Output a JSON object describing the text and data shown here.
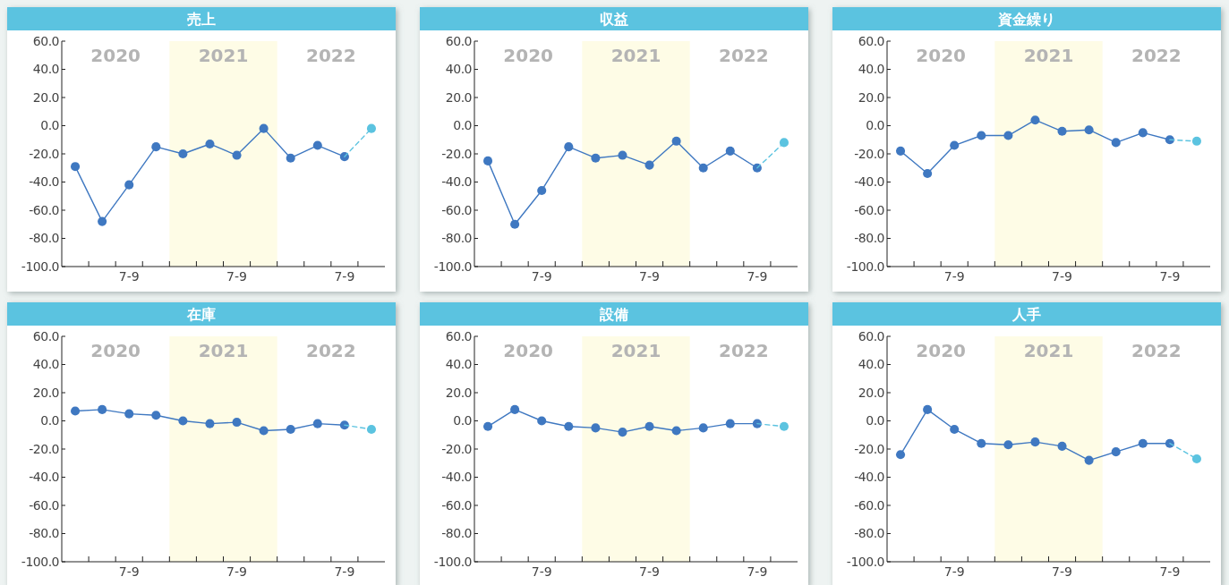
{
  "chart_data": [
    {
      "type": "line",
      "title": "売上",
      "ylim": [
        -100,
        60
      ],
      "marker": "circle",
      "categories": [
        null,
        null,
        "7-9",
        null,
        null,
        null,
        "7-9",
        null,
        null,
        null,
        "7-9",
        null
      ],
      "yticks": [
        {
          "value": 60,
          "label": "60.0"
        },
        {
          "value": 40,
          "label": "40.0"
        },
        {
          "value": 20,
          "label": "20.0"
        },
        {
          "value": 0,
          "label": "0.0"
        },
        {
          "value": -20,
          "label": "-20.0"
        },
        {
          "value": -40,
          "label": "-40.0"
        },
        {
          "value": -60,
          "label": "-60.0"
        },
        {
          "value": -80,
          "label": "-80.0"
        },
        {
          "value": -100,
          "label": "-100.0"
        }
      ],
      "annotations": [
        "2020",
        "2021",
        "2022"
      ],
      "series": [
        {
          "color": "#3f78c1",
          "values": [
            -29,
            -68,
            -42,
            -15,
            -20,
            -13,
            -21,
            -2,
            -23,
            -14,
            -22,
            null
          ]
        },
        {
          "color": "#5bc3e0",
          "line_style": "dashed",
          "values": [
            null,
            null,
            null,
            null,
            null,
            null,
            null,
            null,
            null,
            null,
            -22,
            -2
          ]
        }
      ]
    },
    {
      "type": "line",
      "title": "収益",
      "ylim": [
        -100,
        60
      ],
      "marker": "circle",
      "categories": [
        null,
        null,
        "7-9",
        null,
        null,
        null,
        "7-9",
        null,
        null,
        null,
        "7-9",
        null
      ],
      "yticks": [
        {
          "value": 60,
          "label": "60.0"
        },
        {
          "value": 40,
          "label": "40.0"
        },
        {
          "value": 20,
          "label": "20.0"
        },
        {
          "value": 0,
          "label": "0.0"
        },
        {
          "value": -20,
          "label": "-20.0"
        },
        {
          "value": -40,
          "label": "-40.0"
        },
        {
          "value": -60,
          "label": "-60.0"
        },
        {
          "value": -80,
          "label": "-80.0"
        },
        {
          "value": -100,
          "label": "-100.0"
        }
      ],
      "annotations": [
        "2020",
        "2021",
        "2022"
      ],
      "series": [
        {
          "color": "#3f78c1",
          "values": [
            -25,
            -70,
            -46,
            -15,
            -23,
            -21,
            -28,
            -11,
            -30,
            -18,
            -30,
            null
          ]
        },
        {
          "color": "#5bc3e0",
          "line_style": "dashed",
          "values": [
            null,
            null,
            null,
            null,
            null,
            null,
            null,
            null,
            null,
            null,
            -30,
            -12
          ]
        }
      ]
    },
    {
      "type": "line",
      "title": "資金繰り",
      "ylim": [
        -100,
        60
      ],
      "marker": "circle",
      "categories": [
        null,
        null,
        "7-9",
        null,
        null,
        null,
        "7-9",
        null,
        null,
        null,
        "7-9",
        null
      ],
      "yticks": [
        {
          "value": 60,
          "label": "60.0"
        },
        {
          "value": 40,
          "label": "40.0"
        },
        {
          "value": 20,
          "label": "20.0"
        },
        {
          "value": 0,
          "label": "0.0"
        },
        {
          "value": -20,
          "label": "-20.0"
        },
        {
          "value": -40,
          "label": "-40.0"
        },
        {
          "value": -60,
          "label": "-60.0"
        },
        {
          "value": -80,
          "label": "-80.0"
        },
        {
          "value": -100,
          "label": "-100.0"
        }
      ],
      "annotations": [
        "2020",
        "2021",
        "2022"
      ],
      "series": [
        {
          "color": "#3f78c1",
          "values": [
            -18,
            -34,
            -14,
            -7,
            -7,
            4,
            -4,
            -3,
            -12,
            -5,
            -10,
            null
          ]
        },
        {
          "color": "#5bc3e0",
          "line_style": "dashed",
          "values": [
            null,
            null,
            null,
            null,
            null,
            null,
            null,
            null,
            null,
            null,
            -10,
            -11
          ]
        }
      ]
    },
    {
      "type": "line",
      "title": "在庫",
      "ylim": [
        -100,
        60
      ],
      "marker": "circle",
      "categories": [
        null,
        null,
        "7-9",
        null,
        null,
        null,
        "7-9",
        null,
        null,
        null,
        "7-9",
        null
      ],
      "yticks": [
        {
          "value": 60,
          "label": "60.0"
        },
        {
          "value": 40,
          "label": "40.0"
        },
        {
          "value": 20,
          "label": "20.0"
        },
        {
          "value": 0,
          "label": "0.0"
        },
        {
          "value": -20,
          "label": "-20.0"
        },
        {
          "value": -40,
          "label": "-40.0"
        },
        {
          "value": -60,
          "label": "-60.0"
        },
        {
          "value": -80,
          "label": "-80.0"
        },
        {
          "value": -100,
          "label": "-100.0"
        }
      ],
      "annotations": [
        "2020",
        "2021",
        "2022"
      ],
      "series": [
        {
          "color": "#3f78c1",
          "values": [
            7,
            8,
            5,
            4,
            0,
            -2,
            -1,
            -7,
            -6,
            -2,
            -3,
            null
          ]
        },
        {
          "color": "#5bc3e0",
          "line_style": "dashed",
          "values": [
            null,
            null,
            null,
            null,
            null,
            null,
            null,
            null,
            null,
            null,
            -3,
            -6
          ]
        }
      ]
    },
    {
      "type": "line",
      "title": "設備",
      "ylim": [
        -100,
        60
      ],
      "marker": "circle",
      "categories": [
        null,
        null,
        "7-9",
        null,
        null,
        null,
        "7-9",
        null,
        null,
        null,
        "7-9",
        null
      ],
      "yticks": [
        {
          "value": 60,
          "label": "60.0"
        },
        {
          "value": 40,
          "label": "40.0"
        },
        {
          "value": 20,
          "label": "20.0"
        },
        {
          "value": 0,
          "label": "0.0"
        },
        {
          "value": -20,
          "label": "-20.0"
        },
        {
          "value": -40,
          "label": "-40.0"
        },
        {
          "value": -60,
          "label": "-60.0"
        },
        {
          "value": -80,
          "label": "-80.0"
        },
        {
          "value": -100,
          "label": "-100.0"
        }
      ],
      "annotations": [
        "2020",
        "2021",
        "2022"
      ],
      "series": [
        {
          "color": "#3f78c1",
          "values": [
            -4,
            8,
            0,
            -4,
            -5,
            -8,
            -4,
            -7,
            -5,
            -2,
            -2,
            null
          ]
        },
        {
          "color": "#5bc3e0",
          "line_style": "dashed",
          "values": [
            null,
            null,
            null,
            null,
            null,
            null,
            null,
            null,
            null,
            null,
            -2,
            -4
          ]
        }
      ]
    },
    {
      "type": "line",
      "title": "人手",
      "ylim": [
        -100,
        60
      ],
      "marker": "circle",
      "categories": [
        null,
        null,
        "7-9",
        null,
        null,
        null,
        "7-9",
        null,
        null,
        null,
        "7-9",
        null
      ],
      "yticks": [
        {
          "value": 60,
          "label": "60.0"
        },
        {
          "value": 40,
          "label": "40.0"
        },
        {
          "value": 20,
          "label": "20.0"
        },
        {
          "value": 0,
          "label": "0.0"
        },
        {
          "value": -20,
          "label": "-20.0"
        },
        {
          "value": -40,
          "label": "-40.0"
        },
        {
          "value": -60,
          "label": "-60.0"
        },
        {
          "value": -80,
          "label": "-80.0"
        },
        {
          "value": -100,
          "label": "-100.0"
        }
      ],
      "annotations": [
        "2020",
        "2021",
        "2022"
      ],
      "series": [
        {
          "color": "#3f78c1",
          "values": [
            -24,
            8,
            -6,
            -16,
            -17,
            -15,
            -18,
            -28,
            -22,
            -16,
            -16,
            null
          ]
        },
        {
          "color": "#5bc3e0",
          "line_style": "dashed",
          "values": [
            null,
            null,
            null,
            null,
            null,
            null,
            null,
            null,
            null,
            null,
            -16,
            -27
          ]
        }
      ]
    }
  ]
}
